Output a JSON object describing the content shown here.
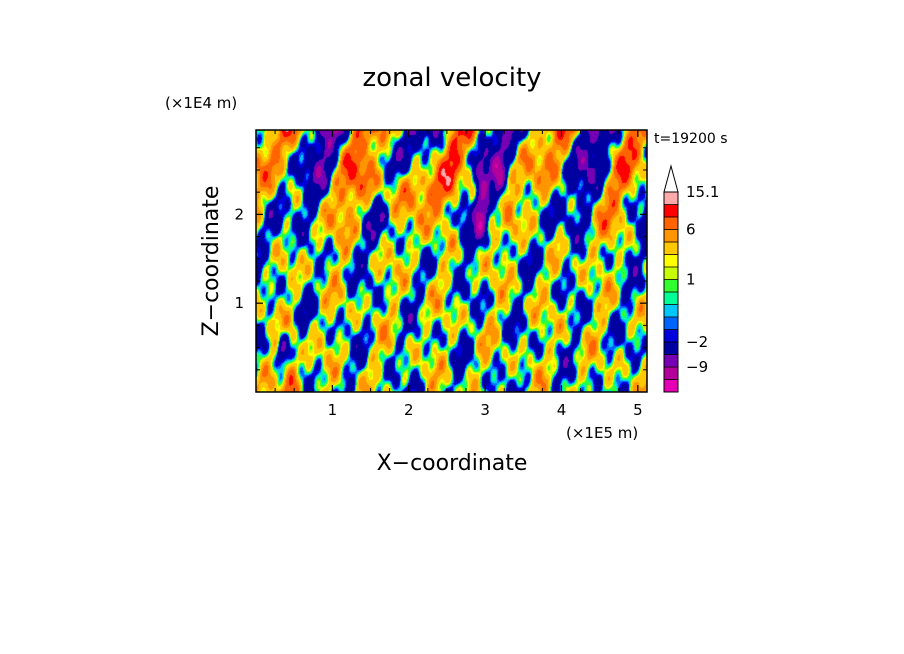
{
  "chart_data": {
    "type": "heatmap",
    "title": "zonal velocity",
    "xlabel": "X−coordinate",
    "ylabel": "Z−coordinate",
    "x_unit": "(×1E5 m)",
    "y_unit": "(×1E4 m)",
    "time_label": "t=19200 s",
    "xlim": [
      0,
      5.12
    ],
    "ylim": [
      0,
      2.95
    ],
    "x_ticks": [
      {
        "value": 1,
        "label": "1"
      },
      {
        "value": 2,
        "label": "2"
      },
      {
        "value": 3,
        "label": "3"
      },
      {
        "value": 4,
        "label": "4"
      },
      {
        "value": 5,
        "label": "5"
      }
    ],
    "y_ticks": [
      {
        "value": 1,
        "label": "1"
      },
      {
        "value": 2,
        "label": "2"
      }
    ],
    "colorbar": {
      "levels": [
        -15.1,
        -12,
        -9,
        -6,
        -2,
        -1,
        -0.5,
        0,
        0.5,
        1,
        1.5,
        2,
        4,
        6,
        9,
        12,
        15.1
      ],
      "colors": [
        "#e600b4",
        "#b4009a",
        "#7800b4",
        "#0000a0",
        "#0000dc",
        "#0064ff",
        "#00c8ff",
        "#00ff96",
        "#32ff32",
        "#c8ff00",
        "#ffff00",
        "#ffc800",
        "#ff9600",
        "#ff6400",
        "#ff0000",
        "#ffaaaa"
      ],
      "tick_labels": [
        {
          "value": 15.1,
          "label": "15.1"
        },
        {
          "value": 6,
          "label": "6"
        },
        {
          "value": 1,
          "label": "1"
        },
        {
          "value": -2,
          "label": "−2"
        },
        {
          "value": -9,
          "label": "−9"
        }
      ]
    }
  }
}
